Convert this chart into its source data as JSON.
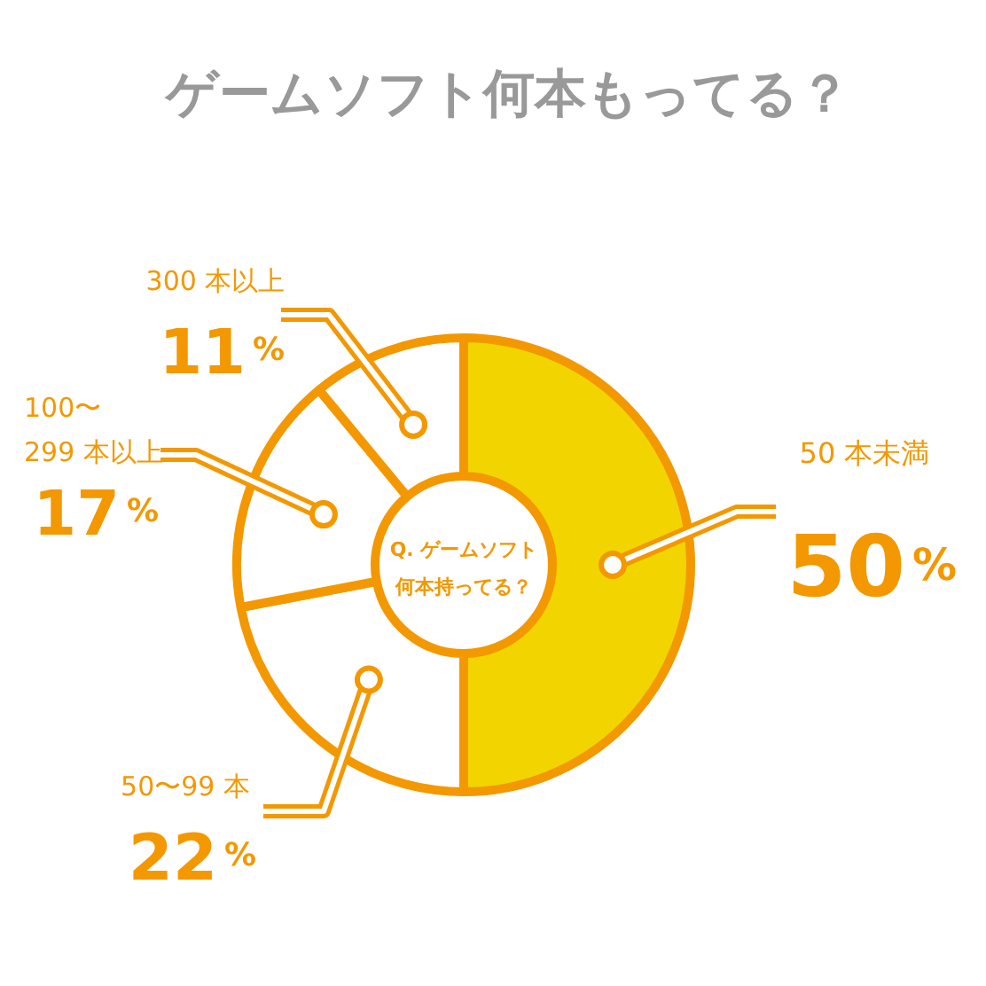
{
  "chart_data": {
    "type": "donut",
    "title": "ゲームソフト何本もってる？",
    "categories": [
      "50 本未満",
      "50〜99 本",
      "100〜\n299 本以上",
      "300 本以上"
    ],
    "values": [
      50,
      22,
      17,
      11
    ],
    "colors": [
      "#f2d400",
      "#ffffff",
      "#ffffff",
      "#ffffff"
    ],
    "value_labels": [
      "50%",
      "22%",
      "17%",
      "11%"
    ],
    "annotations": [
      "Q. ゲームソフト",
      "何本持ってる？"
    ]
  }
}
